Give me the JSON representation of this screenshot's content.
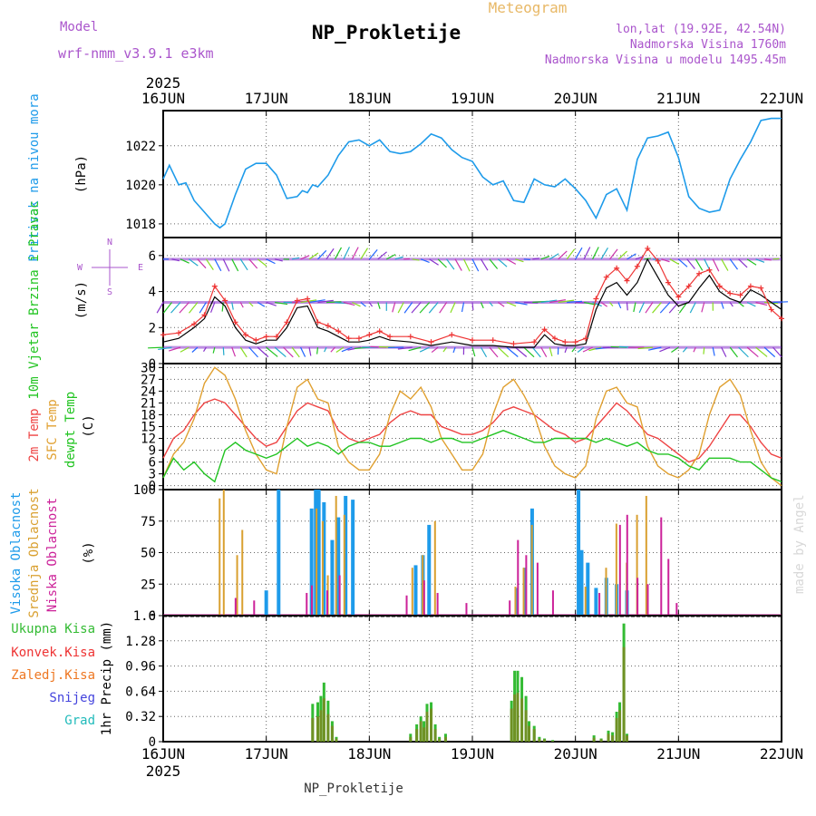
{
  "header": {
    "model_label": "Model",
    "model_name": "wrf-nmm_v3.9.1 e3km",
    "product": "Meteogram",
    "station": "NP_Prokletije",
    "coords": "lon,lat (19.92E, 42.54N)",
    "elevation": "Nadmorska Visina 1760m",
    "model_elevation": "Nadmorska Visina u modelu 1495.45m",
    "footer_station": "NP_Prokletije",
    "watermark": "made by Angel"
  },
  "colors": {
    "pressure": "#1e9bea",
    "wind_label": "#22c422",
    "wind_mean": "#000000",
    "gust": "#ee3333",
    "temp2m": "#ee4444",
    "sfc": "#e0a030",
    "dewpt": "#22c422",
    "cloud_high": "#1e9bea",
    "cloud_mid": "#d9a030",
    "cloud_low": "#cc2299",
    "precip_total": "#33bb33",
    "precip_conv": "#ee3333",
    "precip_strat": "#ee7722",
    "snow": "#4444dd",
    "hail": "#22bbbb",
    "header_purple": "#aa55cc",
    "header_orange": "#e8b866"
  },
  "chart_data": [
    {
      "panel": "pressure",
      "type": "line",
      "ylabel": "(hPa)",
      "title": "Pritisak na nivou mora",
      "yticks": [
        "1018",
        "1020",
        "1022"
      ],
      "ylim": [
        1017.3,
        1023.8
      ],
      "x": [
        0,
        0.06,
        0.15,
        0.22,
        0.3,
        0.4,
        0.5,
        0.55,
        0.6,
        0.7,
        0.8,
        0.9,
        1.0,
        1.1,
        1.2,
        1.3,
        1.35,
        1.4,
        1.45,
        1.5,
        1.6,
        1.7,
        1.8,
        1.9,
        2.0,
        2.1,
        2.2,
        2.3,
        2.4,
        2.5,
        2.6,
        2.7,
        2.8,
        2.9,
        3.0,
        3.1,
        3.2,
        3.3,
        3.4,
        3.5,
        3.6,
        3.7,
        3.8,
        3.9,
        4.0,
        4.1,
        4.2,
        4.3,
        4.4,
        4.5,
        4.6,
        4.7,
        4.8,
        4.9,
        5.0,
        5.1,
        5.2,
        5.3,
        5.4,
        5.5,
        5.6,
        5.7,
        5.8,
        5.9,
        6.0
      ],
      "series": [
        {
          "name": "Pritisak",
          "values": [
            1020.3,
            1021.0,
            1020.0,
            1020.1,
            1019.2,
            1018.6,
            1018.0,
            1017.8,
            1018.0,
            1019.5,
            1020.8,
            1021.1,
            1021.1,
            1020.5,
            1019.3,
            1019.4,
            1019.7,
            1019.6,
            1020.0,
            1019.9,
            1020.5,
            1021.5,
            1022.2,
            1022.3,
            1022.0,
            1022.3,
            1021.7,
            1021.6,
            1021.7,
            1022.1,
            1022.6,
            1022.4,
            1021.8,
            1021.4,
            1021.2,
            1020.4,
            1020.0,
            1020.2,
            1019.2,
            1019.1,
            1020.3,
            1020.0,
            1019.9,
            1020.3,
            1019.8,
            1019.2,
            1018.3,
            1019.5,
            1019.8,
            1018.7,
            1021.3,
            1022.4,
            1022.5,
            1022.7,
            1021.4,
            1019.4,
            1018.8,
            1018.6,
            1018.7,
            1020.3,
            1021.3,
            1022.2,
            1023.3,
            1023.4,
            1023.4
          ]
        }
      ]
    },
    {
      "panel": "wind",
      "type": "line",
      "ylabel": "(m/s)",
      "title": "10m Vjetar Brzina i Pravac",
      "yticks": [
        "0",
        "2",
        "4",
        "6"
      ],
      "ylim": [
        0,
        7
      ],
      "compass": {
        "north": "N",
        "west": "W",
        "east": "E",
        "south": "S"
      },
      "x": [
        0,
        0.15,
        0.3,
        0.4,
        0.5,
        0.6,
        0.7,
        0.8,
        0.9,
        1.0,
        1.1,
        1.2,
        1.3,
        1.4,
        1.5,
        1.6,
        1.7,
        1.8,
        1.9,
        2.0,
        2.1,
        2.2,
        2.4,
        2.6,
        2.8,
        3.0,
        3.2,
        3.4,
        3.6,
        3.7,
        3.8,
        3.9,
        4.0,
        4.1,
        4.2,
        4.3,
        4.4,
        4.5,
        4.6,
        4.7,
        4.8,
        4.9,
        5.0,
        5.1,
        5.2,
        5.3,
        5.4,
        5.5,
        5.6,
        5.7,
        5.8,
        5.9,
        6.0
      ],
      "series": [
        {
          "name": "Brzina",
          "values": [
            1.2,
            1.4,
            2.0,
            2.5,
            3.7,
            3.2,
            2.0,
            1.3,
            1.1,
            1.3,
            1.3,
            2.0,
            3.1,
            3.2,
            2.0,
            1.8,
            1.5,
            1.2,
            1.2,
            1.3,
            1.5,
            1.3,
            1.2,
            1.0,
            1.2,
            1.0,
            1.0,
            0.9,
            0.9,
            1.6,
            1.1,
            1.0,
            1.0,
            1.1,
            3.0,
            4.2,
            4.5,
            3.8,
            4.5,
            5.8,
            4.8,
            3.8,
            3.2,
            3.4,
            4.2,
            4.9,
            4.0,
            3.6,
            3.4,
            4.1,
            3.8,
            3.4,
            3.0
          ]
        },
        {
          "name": "Udar",
          "values": [
            1.6,
            1.7,
            2.2,
            2.7,
            4.3,
            3.5,
            2.3,
            1.6,
            1.3,
            1.5,
            1.5,
            2.3,
            3.5,
            3.6,
            2.3,
            2.1,
            1.8,
            1.4,
            1.4,
            1.6,
            1.8,
            1.5,
            1.5,
            1.2,
            1.6,
            1.3,
            1.3,
            1.1,
            1.2,
            1.9,
            1.4,
            1.2,
            1.2,
            1.4,
            3.6,
            4.8,
            5.3,
            4.6,
            5.4,
            6.4,
            5.7,
            4.5,
            3.7,
            4.3,
            5.0,
            5.2,
            4.3,
            3.9,
            3.8,
            4.3,
            4.2,
            3.0,
            2.5
          ]
        }
      ]
    },
    {
      "panel": "temperature",
      "type": "line",
      "ylabel": "(C)",
      "titles": [
        "2m Temp",
        "SFC Temp",
        "dewpt Temp"
      ],
      "yticks": [
        "0",
        "3",
        "6",
        "9",
        "12",
        "15",
        "18",
        "21",
        "24",
        "27",
        "30"
      ],
      "ylim": [
        -1,
        31
      ],
      "x": [
        0,
        0.1,
        0.2,
        0.3,
        0.4,
        0.5,
        0.6,
        0.7,
        0.8,
        0.9,
        1.0,
        1.1,
        1.2,
        1.3,
        1.4,
        1.5,
        1.6,
        1.7,
        1.8,
        1.9,
        2.0,
        2.1,
        2.2,
        2.3,
        2.4,
        2.5,
        2.6,
        2.7,
        2.8,
        2.9,
        3.0,
        3.1,
        3.2,
        3.3,
        3.4,
        3.5,
        3.6,
        3.7,
        3.8,
        3.9,
        4.0,
        4.1,
        4.2,
        4.3,
        4.4,
        4.5,
        4.6,
        4.7,
        4.8,
        4.9,
        5.0,
        5.1,
        5.2,
        5.3,
        5.4,
        5.5,
        5.6,
        5.7,
        5.8,
        5.9,
        6.0
      ],
      "series": [
        {
          "name": "2m Temp",
          "values": [
            7,
            12,
            14,
            18,
            21,
            22,
            21,
            18,
            15,
            12,
            10,
            11,
            15,
            19,
            21,
            20,
            19,
            14,
            12,
            11,
            12,
            13,
            16,
            18,
            19,
            18,
            18,
            15,
            14,
            13,
            13,
            14,
            16,
            19,
            20,
            19,
            18,
            16,
            14,
            13,
            11,
            12,
            15,
            18,
            21,
            19,
            16,
            13,
            12,
            10,
            8,
            6,
            7,
            10,
            14,
            18,
            18,
            15,
            11,
            8,
            7
          ]
        },
        {
          "name": "SFC Temp",
          "values": [
            2,
            8,
            11,
            17,
            26,
            30,
            28,
            22,
            14,
            8,
            4,
            3,
            15,
            25,
            27,
            22,
            21,
            10,
            6,
            4,
            4,
            8,
            18,
            24,
            22,
            25,
            20,
            12,
            8,
            4,
            4,
            8,
            18,
            25,
            27,
            23,
            18,
            10,
            5,
            3,
            2,
            5,
            17,
            24,
            25,
            21,
            20,
            10,
            5,
            3,
            2,
            4,
            8,
            18,
            25,
            27,
            23,
            14,
            6,
            2,
            0
          ]
        },
        {
          "name": "dewpt Temp",
          "values": [
            2,
            7,
            4,
            6,
            3,
            1,
            9,
            11,
            9,
            8,
            7,
            8,
            10,
            12,
            10,
            11,
            10,
            8,
            10,
            11,
            11,
            10,
            10,
            11,
            12,
            12,
            11,
            12,
            12,
            11,
            11,
            12,
            13,
            14,
            13,
            12,
            11,
            11,
            12,
            12,
            12,
            12,
            11,
            12,
            11,
            10,
            11,
            9,
            8,
            8,
            7,
            5,
            4,
            7,
            7,
            7,
            6,
            6,
            4,
            2,
            1
          ]
        }
      ]
    },
    {
      "panel": "clouds",
      "type": "bar",
      "ylabel": "(%)",
      "titles": [
        "Visoka Oblacnost",
        "Srednja Oblacnost",
        "Niska Oblacnost"
      ],
      "yticks": [
        "0",
        "25",
        "50",
        "75",
        "100"
      ],
      "ylim": [
        0,
        100
      ],
      "series": [
        {
          "name": "Visoka",
          "x": [
            1.0,
            1.12,
            1.44,
            1.48,
            1.51,
            1.56,
            1.64,
            1.7,
            1.77,
            1.84,
            2.45,
            2.52,
            2.58,
            3.43,
            3.51,
            3.58,
            4.03,
            4.06,
            4.12,
            4.2,
            4.3,
            4.4,
            4.5
          ],
          "values": [
            20,
            100,
            85,
            100,
            100,
            90,
            60,
            78,
            95,
            92,
            40,
            48,
            72,
            22,
            38,
            85,
            100,
            52,
            42,
            22,
            30,
            25,
            20
          ]
        },
        {
          "name": "Srednja",
          "x": [
            0.53,
            0.57,
            0.7,
            0.75,
            1.47,
            1.53,
            1.58,
            1.66,
            1.74,
            2.4,
            2.5,
            2.62,
            3.4,
            3.48,
            3.56,
            4.08,
            4.28,
            4.38,
            4.48,
            4.58,
            4.67
          ],
          "values": [
            93,
            100,
            48,
            68,
            85,
            75,
            32,
            95,
            80,
            38,
            48,
            75,
            23,
            38,
            72,
            23,
            38,
            73,
            42,
            80,
            95
          ]
        },
        {
          "name": "Niska",
          "x": [
            0.72,
            0.9,
            1.41,
            1.46,
            1.61,
            1.73,
            2.38,
            2.55,
            2.68,
            2.96,
            3.38,
            3.46,
            3.54,
            3.65,
            3.8,
            4.25,
            4.45,
            4.52,
            4.62,
            4.72,
            4.85,
            4.92,
            5.0
          ],
          "values": [
            14,
            12,
            18,
            24,
            20,
            32,
            16,
            28,
            18,
            10,
            12,
            60,
            48,
            42,
            20,
            18,
            72,
            80,
            30,
            25,
            78,
            45,
            10
          ]
        }
      ]
    },
    {
      "panel": "precip",
      "type": "bar",
      "ylabel": "1hr Precip (mm)",
      "titles": [
        "Ukupna Kisa",
        "Konvek.Kisa",
        "Zaledj.Kisa",
        "Snijeg",
        "Grad"
      ],
      "yticks": [
        "0",
        "0.32",
        "0.64",
        "0.96",
        "1.28",
        "1.6"
      ],
      "ylim": [
        0,
        1.6
      ],
      "x": [
        1.45,
        1.5,
        1.53,
        1.56,
        1.6,
        1.64,
        1.68,
        2.4,
        2.46,
        2.5,
        2.53,
        2.56,
        2.6,
        2.64,
        2.68,
        2.74,
        3.38,
        3.41,
        3.44,
        3.48,
        3.52,
        3.55,
        3.6,
        3.65,
        3.7,
        3.78,
        4.18,
        4.25,
        4.32,
        4.36,
        4.4,
        4.43,
        4.47,
        4.5
      ],
      "series": [
        {
          "name": "Ukupna Kisa",
          "values": [
            0.48,
            0.5,
            0.58,
            0.75,
            0.52,
            0.26,
            0.06,
            0.1,
            0.22,
            0.32,
            0.26,
            0.48,
            0.5,
            0.22,
            0.06,
            0.1,
            0.52,
            0.9,
            0.9,
            0.82,
            0.58,
            0.26,
            0.2,
            0.06,
            0.04,
            0.02,
            0.08,
            0.04,
            0.14,
            0.12,
            0.38,
            0.5,
            1.5,
            0.1
          ]
        },
        {
          "name": "Konvek.Kisa",
          "values": [
            0.3,
            0.32,
            0.4,
            0.55,
            0.35,
            0.2,
            0.04,
            0.06,
            0.16,
            0.26,
            0.18,
            0.38,
            0.42,
            0.16,
            0.04,
            0.06,
            0.42,
            0.6,
            0.62,
            0.55,
            0.4,
            0.2,
            0.16,
            0.04,
            0.03,
            0.01,
            0.05,
            0.03,
            0.1,
            0.08,
            0.3,
            0.4,
            1.2,
            0.08
          ]
        }
      ]
    },
    {
      "panel": "time_axis",
      "type": "axis",
      "year": "2025",
      "ticks": [
        "16JUN",
        "17JUN",
        "18JUN",
        "19JUN",
        "20JUN",
        "21JUN",
        "22JUN"
      ]
    }
  ]
}
